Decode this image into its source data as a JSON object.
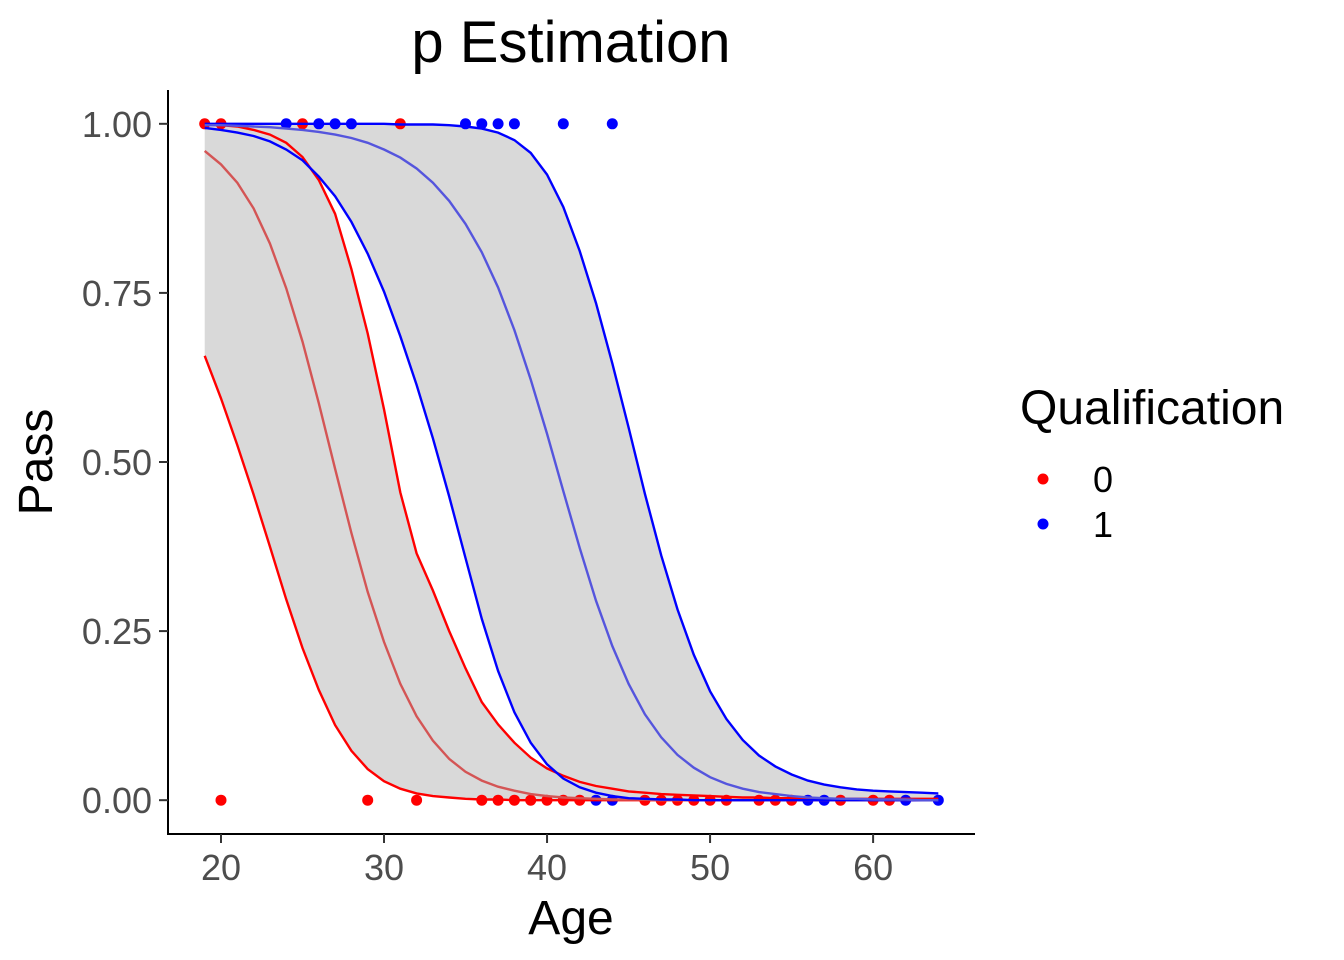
{
  "chart_data": {
    "type": "line",
    "title": "p Estimation",
    "xlabel": "Age",
    "ylabel": "Pass",
    "xlim": [
      16.75,
      66.25
    ],
    "ylim": [
      -0.05,
      1.05
    ],
    "x_ticks": [
      20,
      30,
      40,
      50,
      60
    ],
    "x_tick_labels": [
      "20",
      "30",
      "40",
      "50",
      "60"
    ],
    "y_ticks": [
      0,
      0.25,
      0.5,
      0.75,
      1
    ],
    "y_tick_labels": [
      "0.00",
      "0.25",
      "0.50",
      "0.75",
      "1.00"
    ],
    "grid": false,
    "legend": {
      "title": "Qualification",
      "placement": "right",
      "entries": [
        {
          "label": "0",
          "color": "#ff0000"
        },
        {
          "label": "1",
          "color": "#0000ff"
        }
      ]
    },
    "x_grid": [
      19,
      20,
      21,
      22,
      23,
      24,
      25,
      26,
      27,
      28,
      29,
      30,
      31,
      32,
      33,
      34,
      35,
      36,
      37,
      38,
      39,
      40,
      41,
      42,
      43,
      44,
      45,
      46,
      47,
      48,
      49,
      50,
      51,
      52,
      53,
      54,
      55,
      56,
      57,
      58,
      59,
      60,
      61,
      62,
      63,
      64
    ],
    "series": [
      {
        "name": "0",
        "color": "#ff0000",
        "fit_color": "#d45555",
        "band_color": "#d9d9d9",
        "fit": [
          0.96,
          0.94,
          0.913,
          0.875,
          0.823,
          0.757,
          0.678,
          0.587,
          0.49,
          0.395,
          0.308,
          0.234,
          0.172,
          0.124,
          0.088,
          0.061,
          0.042,
          0.029,
          0.02,
          0.014,
          0.009,
          0.006,
          0.004,
          0.003,
          0.002,
          0.001,
          0.001,
          0.001,
          0.0,
          0.0,
          0.0,
          0.0,
          0.0,
          0.0,
          0.0,
          0.0,
          0.0,
          0.0,
          0.0,
          0.0,
          0.0,
          0.0,
          0.0,
          0.0,
          0.0,
          0.0
        ],
        "lower": [
          0.657,
          0.594,
          0.525,
          0.452,
          0.375,
          0.297,
          0.225,
          0.163,
          0.111,
          0.073,
          0.046,
          0.028,
          0.017,
          0.01,
          0.006,
          0.004,
          0.002,
          0.001,
          0.001,
          0.0,
          0.0,
          0.0,
          0.0,
          0.0,
          0.0,
          0.0,
          0.0,
          0.0,
          0.0,
          0.0,
          0.0,
          0.0,
          0.0,
          0.0,
          0.0,
          0.0,
          0.0,
          0.0,
          0.0,
          0.0,
          0.0,
          0.0,
          0.0,
          0.0,
          0.0,
          0.0
        ],
        "upper": [
          0.999,
          0.998,
          0.996,
          0.991,
          0.984,
          0.972,
          0.951,
          0.917,
          0.867,
          0.785,
          0.69,
          0.578,
          0.455,
          0.365,
          0.31,
          0.25,
          0.195,
          0.145,
          0.112,
          0.085,
          0.063,
          0.047,
          0.036,
          0.027,
          0.021,
          0.017,
          0.013,
          0.011,
          0.009,
          0.008,
          0.007,
          0.006,
          0.005,
          0.004,
          0.004,
          0.003,
          0.003,
          0.003,
          0.002,
          0.002,
          0.002,
          0.002,
          0.002,
          0.002,
          0.002,
          0.002
        ],
        "points": [
          [
            19,
            1
          ],
          [
            20,
            1
          ],
          [
            25,
            1
          ],
          [
            31,
            1
          ],
          [
            20,
            0
          ],
          [
            29,
            0
          ],
          [
            32,
            0
          ],
          [
            36,
            0
          ],
          [
            37,
            0
          ],
          [
            38,
            0
          ],
          [
            39,
            0
          ],
          [
            40,
            0
          ],
          [
            41,
            0
          ],
          [
            42,
            0
          ],
          [
            46,
            0
          ],
          [
            47,
            0
          ],
          [
            48,
            0
          ],
          [
            49,
            0
          ],
          [
            50,
            0
          ],
          [
            51,
            0
          ],
          [
            53,
            0
          ],
          [
            54,
            0
          ],
          [
            55,
            0
          ],
          [
            58,
            0
          ],
          [
            60,
            0
          ],
          [
            61,
            0
          ]
        ]
      },
      {
        "name": "1",
        "color": "#0000ff",
        "fit_color": "#5555dd",
        "band_color": "#d9d9d9",
        "fit": [
          0.998,
          0.998,
          0.997,
          0.996,
          0.995,
          0.993,
          0.991,
          0.988,
          0.984,
          0.979,
          0.972,
          0.962,
          0.95,
          0.934,
          0.913,
          0.886,
          0.852,
          0.81,
          0.758,
          0.695,
          0.622,
          0.542,
          0.457,
          0.373,
          0.295,
          0.228,
          0.172,
          0.127,
          0.093,
          0.067,
          0.048,
          0.034,
          0.024,
          0.017,
          0.012,
          0.009,
          0.006,
          0.004,
          0.003,
          0.002,
          0.002,
          0.001,
          0.001,
          0.001,
          0.0,
          0.0
        ],
        "lower": [
          0.994,
          0.991,
          0.987,
          0.982,
          0.974,
          0.962,
          0.946,
          0.922,
          0.893,
          0.855,
          0.808,
          0.752,
          0.686,
          0.614,
          0.535,
          0.449,
          0.358,
          0.268,
          0.191,
          0.13,
          0.085,
          0.053,
          0.032,
          0.019,
          0.011,
          0.006,
          0.003,
          0.002,
          0.001,
          0.001,
          0.0,
          0.0,
          0.0,
          0.0,
          0.0,
          0.0,
          0.0,
          0.0,
          0.0,
          0.0,
          0.0,
          0.0,
          0.0,
          0.0,
          0.0,
          0.0
        ],
        "upper": [
          1.0,
          1.0,
          1.0,
          1.0,
          1.0,
          1.0,
          1.0,
          1.0,
          1.0,
          1.0,
          1.0,
          1.0,
          0.999,
          0.999,
          0.999,
          0.998,
          0.996,
          0.993,
          0.987,
          0.976,
          0.957,
          0.925,
          0.877,
          0.812,
          0.735,
          0.646,
          0.551,
          0.453,
          0.362,
          0.282,
          0.215,
          0.161,
          0.12,
          0.089,
          0.066,
          0.05,
          0.038,
          0.029,
          0.023,
          0.019,
          0.016,
          0.014,
          0.013,
          0.012,
          0.011,
          0.01
        ],
        "points": [
          [
            24,
            1
          ],
          [
            26,
            1
          ],
          [
            27,
            1
          ],
          [
            28,
            1
          ],
          [
            35,
            1
          ],
          [
            36,
            1
          ],
          [
            37,
            1
          ],
          [
            38,
            1
          ],
          [
            41,
            1
          ],
          [
            44,
            1
          ],
          [
            43,
            0
          ],
          [
            44,
            0
          ],
          [
            56,
            0
          ],
          [
            57,
            0
          ],
          [
            62,
            0
          ],
          [
            64,
            0
          ]
        ]
      }
    ]
  }
}
